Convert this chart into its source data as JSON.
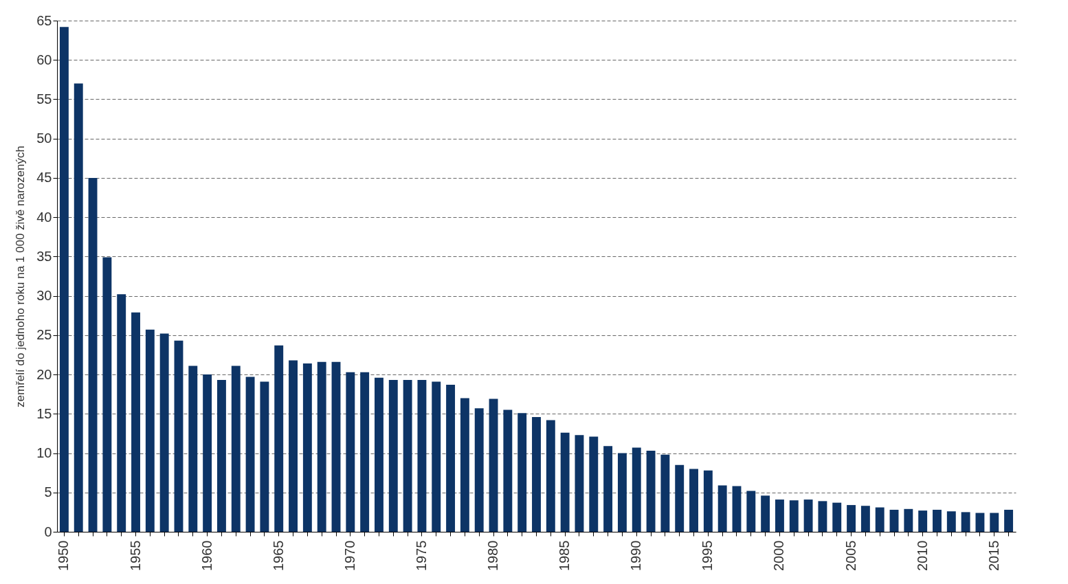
{
  "chart_data": {
    "type": "bar",
    "ylabel": "zemřelí do jednoho roku na 1 000 živě narozených",
    "categories": [
      "1950",
      null,
      null,
      null,
      null,
      "1955",
      null,
      null,
      null,
      null,
      "1960",
      null,
      null,
      null,
      null,
      "1965",
      null,
      null,
      null,
      null,
      "1970",
      null,
      null,
      null,
      null,
      "1975",
      null,
      null,
      null,
      null,
      "1980",
      null,
      null,
      null,
      null,
      "1985",
      null,
      null,
      null,
      null,
      "1990",
      null,
      null,
      null,
      null,
      "1995",
      null,
      null,
      null,
      null,
      "2000",
      null,
      null,
      null,
      null,
      "2005",
      null,
      null,
      null,
      null,
      "2010",
      null,
      null,
      null,
      null,
      "2015",
      null
    ],
    "values": [
      64.2,
      57.0,
      45.0,
      34.9,
      30.2,
      27.9,
      25.7,
      25.2,
      24.3,
      21.1,
      20.0,
      19.3,
      21.1,
      19.7,
      19.1,
      23.7,
      21.8,
      21.4,
      21.6,
      21.6,
      20.3,
      20.3,
      19.6,
      19.3,
      19.3,
      19.3,
      19.1,
      18.7,
      17.0,
      15.7,
      16.9,
      15.5,
      15.1,
      14.6,
      14.2,
      12.6,
      12.3,
      12.1,
      10.9,
      10.0,
      10.7,
      10.3,
      9.8,
      8.5,
      8.0,
      7.8,
      5.9,
      5.8,
      5.2,
      4.6,
      4.1,
      4.0,
      4.1,
      3.9,
      3.7,
      3.4,
      3.3,
      3.1,
      2.8,
      2.9,
      2.7,
      2.8,
      2.6,
      2.5,
      2.4,
      2.4,
      2.8
    ],
    "color": "#0d3466",
    "ylim": [
      0,
      65
    ],
    "yticks": [
      0,
      5,
      10,
      15,
      20,
      25,
      30,
      35,
      40,
      45,
      50,
      55,
      60,
      65
    ],
    "grid": "y"
  }
}
